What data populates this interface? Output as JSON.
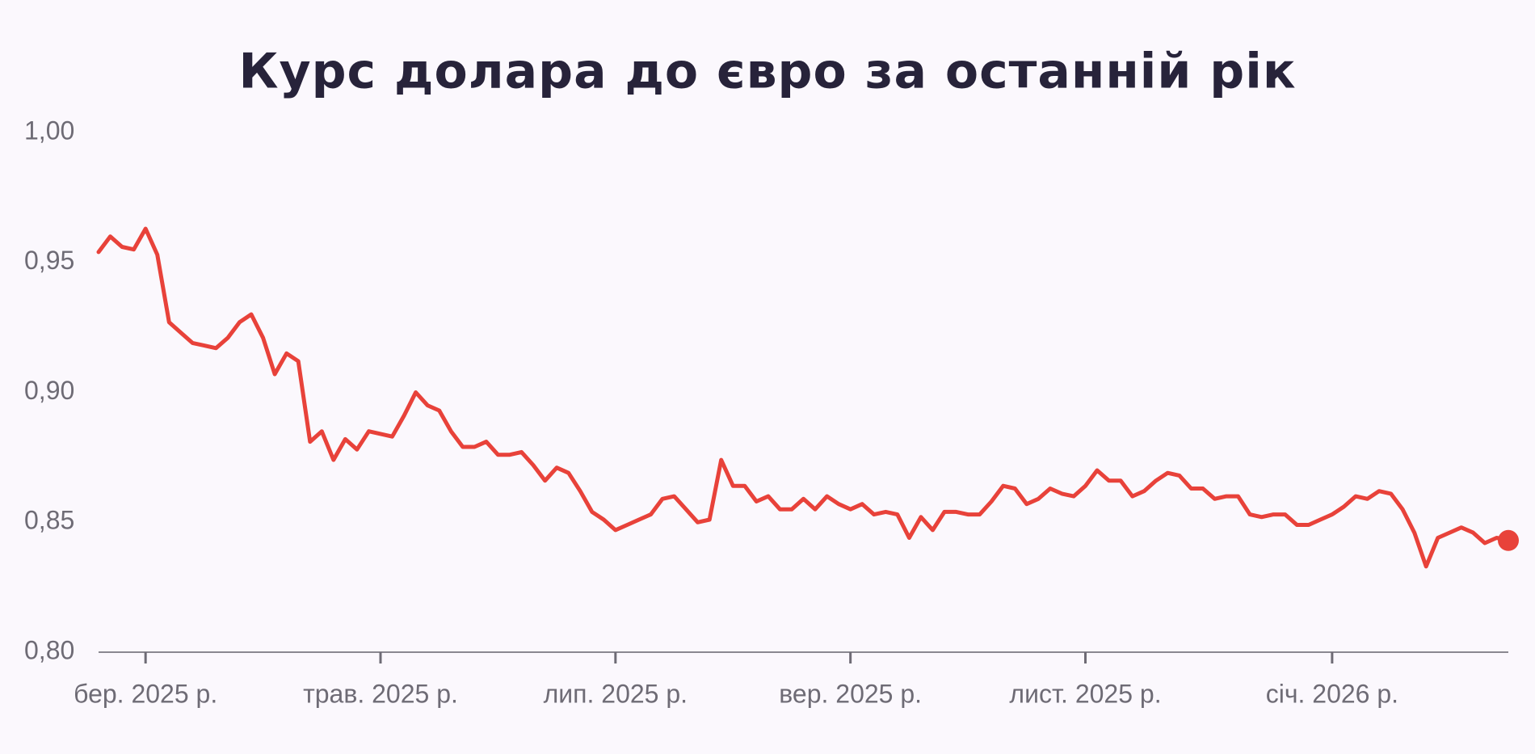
{
  "chart_data": {
    "type": "line",
    "title": "Курс долара до євро за останній рік",
    "categories": [
      null,
      null,
      null,
      null,
      "бер. 2025 р.",
      null,
      null,
      null,
      null,
      null,
      null,
      null,
      null,
      null,
      null,
      null,
      null,
      null,
      null,
      null,
      null,
      null,
      null,
      null,
      "трав. 2025 р.",
      null,
      null,
      null,
      null,
      null,
      null,
      null,
      null,
      null,
      null,
      null,
      null,
      null,
      null,
      null,
      null,
      null,
      null,
      null,
      "лип. 2025 р.",
      null,
      null,
      null,
      null,
      null,
      null,
      null,
      null,
      null,
      null,
      null,
      null,
      null,
      null,
      null,
      null,
      null,
      null,
      null,
      "вер. 2025 р.",
      null,
      null,
      null,
      null,
      null,
      null,
      null,
      null,
      null,
      null,
      null,
      null,
      null,
      null,
      null,
      null,
      null,
      null,
      null,
      "лист. 2025 р.",
      null,
      null,
      null,
      null,
      null,
      null,
      null,
      null,
      null,
      null,
      null,
      null,
      null,
      null,
      null,
      null,
      null,
      null,
      null,
      null,
      "січ. 2026 р.",
      null,
      null,
      null,
      null,
      null,
      null,
      null,
      null,
      null,
      null,
      null,
      null,
      null,
      null,
      null
    ],
    "values": [
      0.954,
      0.96,
      0.956,
      0.955,
      0.963,
      0.953,
      0.927,
      0.923,
      0.919,
      0.918,
      0.917,
      0.921,
      0.927,
      0.93,
      0.921,
      0.907,
      0.915,
      0.912,
      0.881,
      0.885,
      0.874,
      0.882,
      0.878,
      0.885,
      0.884,
      0.883,
      0.891,
      0.9,
      0.895,
      0.893,
      0.885,
      0.879,
      0.879,
      0.881,
      0.876,
      0.876,
      0.877,
      0.872,
      0.866,
      0.871,
      0.869,
      0.862,
      0.854,
      0.851,
      0.847,
      0.849,
      0.851,
      0.853,
      0.859,
      0.86,
      0.855,
      0.85,
      0.851,
      0.874,
      0.864,
      0.864,
      0.858,
      0.86,
      0.855,
      0.855,
      0.859,
      0.855,
      0.86,
      0.857,
      0.855,
      0.857,
      0.853,
      0.854,
      0.853,
      0.844,
      0.852,
      0.847,
      0.854,
      0.854,
      0.853,
      0.853,
      0.858,
      0.864,
      0.863,
      0.857,
      0.859,
      0.863,
      0.861,
      0.86,
      0.864,
      0.87,
      0.866,
      0.866,
      0.86,
      0.862,
      0.866,
      0.869,
      0.868,
      0.863,
      0.863,
      0.859,
      0.86,
      0.86,
      0.853,
      0.852,
      0.853,
      0.853,
      0.849,
      0.849,
      0.851,
      0.853,
      0.856,
      0.86,
      0.859,
      0.862,
      0.861,
      0.855,
      0.846,
      0.833,
      0.844,
      0.846,
      0.848,
      0.846,
      0.842,
      0.844,
      0.843
    ],
    "color": "#e8423a",
    "ylim": [
      0.8,
      1.0
    ],
    "yticks": [
      {
        "value": 0.8,
        "label": "0,80"
      },
      {
        "value": 0.85,
        "label": "0,85"
      },
      {
        "value": 0.9,
        "label": "0,90"
      },
      {
        "value": 0.95,
        "label": "0,95"
      },
      {
        "value": 1.0,
        "label": "1,00"
      }
    ],
    "grid": false
  }
}
